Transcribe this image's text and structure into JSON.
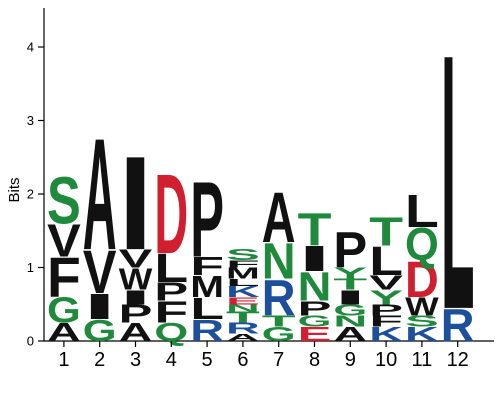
{
  "chart_data": {
    "type": "sequence-logo",
    "title": "",
    "xlabel": "",
    "ylabel": "Bits",
    "ylim": [
      0,
      4.4
    ],
    "yticks": [
      "0",
      "1",
      "2",
      "3",
      "4"
    ],
    "colors": {
      "green": "#1f8a3c",
      "black": "#111111",
      "blue": "#1c4f9c",
      "red": "#d11f2f"
    },
    "letter_colors": {
      "A": "black",
      "G": "green",
      "V": "black",
      "F": "black",
      "S": "green",
      "I": "black",
      "P": "black",
      "W": "black",
      "Q": "green",
      "L": "black",
      "D": "red",
      "R": "blue",
      "M": "black",
      "T": "green",
      "N": "green",
      "E": "red",
      "K": "blue",
      "Y": "green"
    },
    "positions": [
      {
        "label": "1",
        "letters": [
          {
            "aa": "A",
            "h": 0.25
          },
          {
            "aa": "G",
            "h": 0.35
          },
          {
            "aa": "F",
            "h": 0.55
          },
          {
            "aa": "V",
            "h": 0.45
          },
          {
            "aa": "S",
            "h": 0.65
          }
        ]
      },
      {
        "label": "2",
        "letters": [
          {
            "aa": "G",
            "h": 0.3
          },
          {
            "aa": "I",
            "h": 0.35
          },
          {
            "aa": "V",
            "h": 0.6
          },
          {
            "aa": "A",
            "h": 1.55
          }
        ]
      },
      {
        "label": "3",
        "letters": [
          {
            "aa": "A",
            "h": 0.25
          },
          {
            "aa": "P",
            "h": 0.25
          },
          {
            "aa": "I",
            "h": 0.2
          },
          {
            "aa": "W",
            "h": 0.3
          },
          {
            "aa": "V",
            "h": 0.25
          },
          {
            "aa": "I",
            "h": 1.3
          }
        ]
      },
      {
        "label": "4",
        "letters": [
          {
            "aa": "Q",
            "h": 0.25
          },
          {
            "aa": "F",
            "h": 0.3
          },
          {
            "aa": "P",
            "h": 0.25
          },
          {
            "aa": "L",
            "h": 0.4
          },
          {
            "aa": "D",
            "h": 1.1
          }
        ]
      },
      {
        "label": "5",
        "letters": [
          {
            "aa": "R",
            "h": 0.3
          },
          {
            "aa": "L",
            "h": 0.3
          },
          {
            "aa": "M",
            "h": 0.3
          },
          {
            "aa": "F",
            "h": 0.25
          },
          {
            "aa": "P",
            "h": 1.05
          }
        ]
      },
      {
        "label": "6",
        "letters": [
          {
            "aa": "A",
            "h": 0.1
          },
          {
            "aa": "R",
            "h": 0.15
          },
          {
            "aa": "T",
            "h": 0.15
          },
          {
            "aa": "N",
            "h": 0.1
          },
          {
            "aa": "E",
            "h": 0.1
          },
          {
            "aa": "K",
            "h": 0.15
          },
          {
            "aa": "L",
            "h": 0.1
          },
          {
            "aa": "M",
            "h": 0.15
          },
          {
            "aa": "F",
            "h": 0.1
          },
          {
            "aa": "S",
            "h": 0.15
          }
        ]
      },
      {
        "label": "7",
        "letters": [
          {
            "aa": "G",
            "h": 0.2
          },
          {
            "aa": "T",
            "h": 0.15
          },
          {
            "aa": "R",
            "h": 0.5
          },
          {
            "aa": "N",
            "h": 0.5
          },
          {
            "aa": "A",
            "h": 0.7
          }
        ]
      },
      {
        "label": "8",
        "letters": [
          {
            "aa": "E",
            "h": 0.2
          },
          {
            "aa": "G",
            "h": 0.15
          },
          {
            "aa": "P",
            "h": 0.2
          },
          {
            "aa": "N",
            "h": 0.4
          },
          {
            "aa": "I",
            "h": 0.35
          },
          {
            "aa": "T",
            "h": 0.45
          }
        ]
      },
      {
        "label": "9",
        "letters": [
          {
            "aa": "A",
            "h": 0.2
          },
          {
            "aa": "N",
            "h": 0.15
          },
          {
            "aa": "G",
            "h": 0.15
          },
          {
            "aa": "I",
            "h": 0.2
          },
          {
            "aa": "T",
            "h": 0.15
          },
          {
            "aa": "Y",
            "h": 0.15
          },
          {
            "aa": "P",
            "h": 0.5
          }
        ]
      },
      {
        "label": "10",
        "letters": [
          {
            "aa": "K",
            "h": 0.2
          },
          {
            "aa": "F",
            "h": 0.15
          },
          {
            "aa": "P",
            "h": 0.15
          },
          {
            "aa": "Y",
            "h": 0.2
          },
          {
            "aa": "V",
            "h": 0.2
          },
          {
            "aa": "L",
            "h": 0.4
          },
          {
            "aa": "T",
            "h": 0.4
          }
        ]
      },
      {
        "label": "11",
        "letters": [
          {
            "aa": "K",
            "h": 0.2
          },
          {
            "aa": "S",
            "h": 0.15
          },
          {
            "aa": "W",
            "h": 0.25
          },
          {
            "aa": "D",
            "h": 0.5
          },
          {
            "aa": "Q",
            "h": 0.45
          },
          {
            "aa": "L",
            "h": 0.45
          }
        ]
      },
      {
        "label": "12",
        "letters": [
          {
            "aa": "R",
            "h": 0.45
          },
          {
            "aa": "L",
            "h": 3.55
          }
        ]
      }
    ]
  }
}
